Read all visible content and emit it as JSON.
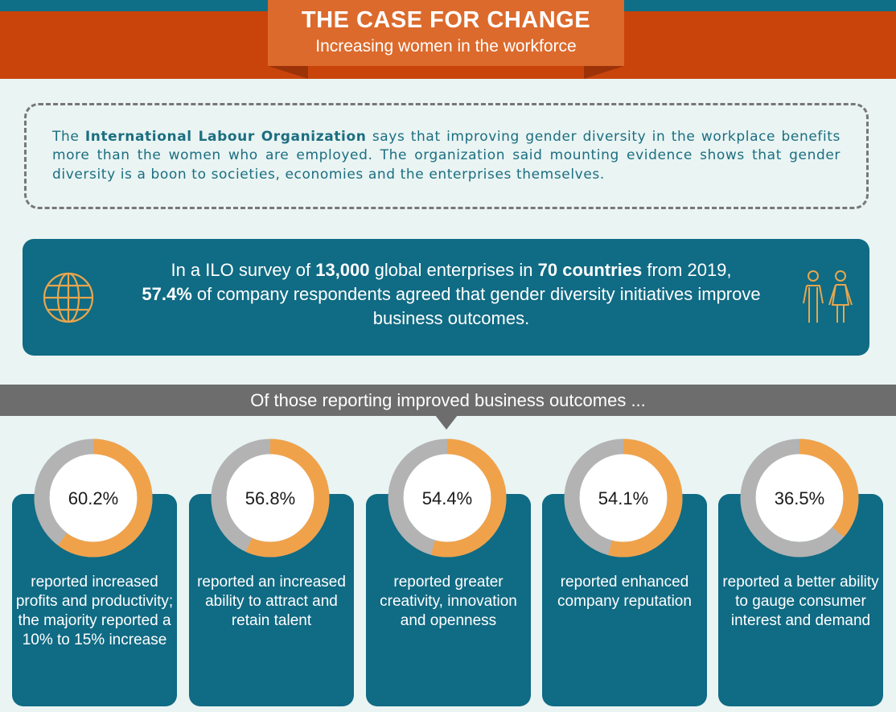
{
  "header": {
    "title": "THE CASE FOR CHANGE",
    "subtitle": "Increasing women in the workforce"
  },
  "intro": {
    "org_name": "International Labour Organization",
    "text_before": "The ",
    "text_after": " says that improving gender diversity in the workplace benefits more than the women who are employed. The organization said mounting evidence shows that gender diversity is a boon to societies, economies and the enterprises themselves."
  },
  "survey": {
    "part1": "In a ILO survey of ",
    "enterprises": "13,000",
    "part2": " global enterprises in ",
    "countries": "70 countries",
    "part3": " from 2019,",
    "percent": "57.4%",
    "part4": " of company respondents agreed that gender diversity initiatives improve business outcomes.",
    "icons": [
      "globe-icon",
      "people-icon"
    ]
  },
  "banner": {
    "text": "Of those reporting improved business outcomes ..."
  },
  "colors": {
    "orange": "#f0a24a",
    "gray": "#b3b3b3",
    "teal": "#106b84",
    "header_red": "#c9440b",
    "ribbon": "#dc6a2c"
  },
  "chart_data": {
    "type": "pie",
    "categories": [
      "reported increased profits and productivity; the majority reported a 10% to 15% increase",
      "reported an increased ability to attract and retain talent",
      "reported greater creativity, innovation and openness",
      "reported enhanced company reputation",
      "reported a better ability to gauge consumer interest and demand"
    ],
    "values": [
      60.2,
      56.8,
      54.4,
      54.1,
      36.5
    ],
    "labels": [
      "60.2%",
      "56.8%",
      "54.4%",
      "54.1%",
      "36.5%"
    ],
    "title": "",
    "xlabel": "",
    "ylabel": ""
  },
  "cards": [
    {
      "label": "60.2%",
      "text": "reported increased profits and productivity; the majority reported a 10% to 15% increase"
    },
    {
      "label": "56.8%",
      "text": "reported an increased ability to attract and retain talent"
    },
    {
      "label": "54.4%",
      "text": "reported greater creativity, innovation and openness"
    },
    {
      "label": "54.1%",
      "text": "reported enhanced company reputation"
    },
    {
      "label": "36.5%",
      "text": "reported a better ability to gauge consumer interest and demand"
    }
  ]
}
